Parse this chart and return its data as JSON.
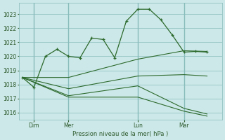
{
  "background_color": "#cce8e8",
  "grid_color": "#88bbbb",
  "line_color": "#2d6a2d",
  "xlabel": "Pression niveau de la mer( hPa )",
  "ylim": [
    1015.5,
    1023.8
  ],
  "yticks": [
    1016,
    1017,
    1018,
    1019,
    1020,
    1021,
    1022,
    1023
  ],
  "xlim": [
    -0.3,
    17.3
  ],
  "xtick_labels": [
    "Dim",
    "Mer",
    "Lun",
    "Mar"
  ],
  "xtick_positions": [
    1,
    4,
    10,
    14
  ],
  "vline_positions": [
    1,
    4,
    10,
    14
  ],
  "series1_x": [
    0,
    1,
    2,
    3,
    4,
    5,
    6,
    7,
    8,
    9,
    10,
    11,
    12,
    13,
    14,
    15,
    16
  ],
  "series1_y": [
    1018.5,
    1017.8,
    1020.0,
    1020.5,
    1020.0,
    1019.9,
    1021.3,
    1021.2,
    1019.9,
    1022.5,
    1023.35,
    1023.35,
    1022.6,
    1021.5,
    1020.3,
    1020.35,
    1020.3
  ],
  "series2_x": [
    0,
    4,
    10,
    14,
    16
  ],
  "series2_y": [
    1018.5,
    1018.5,
    1019.8,
    1020.4,
    1020.35
  ],
  "series3_x": [
    0,
    4,
    10,
    14,
    16
  ],
  "series3_y": [
    1018.5,
    1017.7,
    1018.6,
    1018.7,
    1018.6
  ],
  "series4_x": [
    0,
    4,
    10,
    14,
    16
  ],
  "series4_y": [
    1018.5,
    1017.2,
    1017.9,
    1016.3,
    1015.9
  ],
  "series5_x": [
    0,
    4,
    10,
    14,
    16
  ],
  "series5_y": [
    1018.5,
    1017.1,
    1017.1,
    1016.1,
    1015.75
  ]
}
